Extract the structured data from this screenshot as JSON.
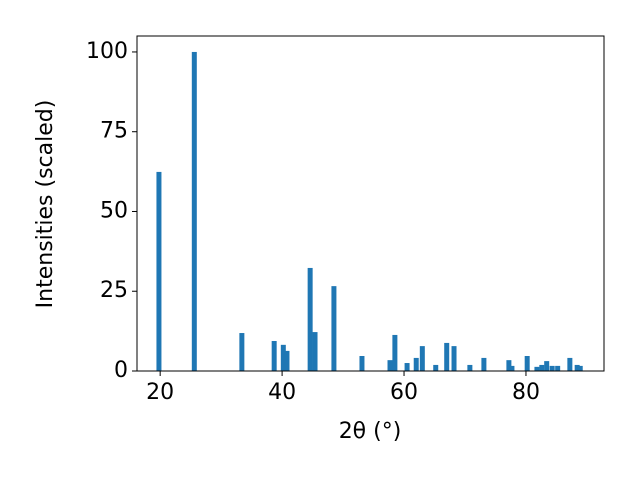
{
  "chart_data": {
    "type": "bar",
    "xlabel": "2θ (°)",
    "ylabel": "Intensities (scaled)",
    "x": [
      19.8,
      25.6,
      33.4,
      38.7,
      40.2,
      40.8,
      44.6,
      45.4,
      48.5,
      53.1,
      57.7,
      58.5,
      60.5,
      62.0,
      63.0,
      65.2,
      67.0,
      68.2,
      70.8,
      73.1,
      77.2,
      77.7,
      80.2,
      81.8,
      82.6,
      83.4,
      84.3,
      85.2,
      87.2,
      88.4,
      88.9
    ],
    "values": [
      62.4,
      100,
      11.9,
      9.4,
      8.2,
      6.3,
      32.3,
      12.2,
      26.6,
      4.7,
      3.4,
      11.3,
      2.5,
      4.1,
      7.8,
      1.9,
      8.8,
      7.8,
      1.9,
      4.1,
      3.4,
      1.6,
      4.7,
      1.3,
      1.9,
      3.1,
      1.6,
      1.6,
      4.1,
      1.9,
      1.6
    ],
    "color": "#1f77b4",
    "xlim": [
      16.2,
      92.8
    ],
    "xticks": [
      20,
      40,
      60,
      80
    ],
    "ylim": [
      0,
      105
    ],
    "yticks": [
      0,
      25,
      50,
      75,
      100
    ]
  }
}
